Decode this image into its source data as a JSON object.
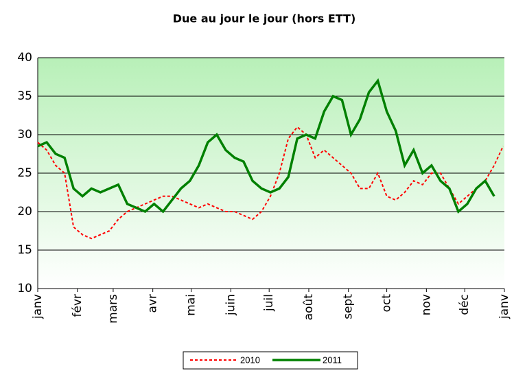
{
  "chart_data": {
    "type": "line",
    "title": "Due au jour le jour (hors ETT)",
    "x": [
      0,
      7,
      14,
      21,
      28,
      35,
      42,
      49,
      56,
      63,
      70,
      77,
      84,
      91,
      98,
      105,
      112,
      119,
      126,
      133,
      140,
      147,
      154,
      161,
      168,
      175,
      182,
      189,
      196,
      203,
      210,
      217,
      224,
      231,
      238,
      245,
      252,
      259,
      266,
      273,
      280,
      287,
      294,
      301,
      308,
      315,
      322,
      329,
      336,
      343,
      350,
      357,
      364
    ],
    "xlim": [
      0,
      365
    ],
    "xticks": [
      {
        "value": 0,
        "label": "janv"
      },
      {
        "value": 31,
        "label": "févr"
      },
      {
        "value": 59,
        "label": "mars"
      },
      {
        "value": 90,
        "label": "avr"
      },
      {
        "value": 120,
        "label": "mai"
      },
      {
        "value": 151,
        "label": "juin"
      },
      {
        "value": 181,
        "label": "juil"
      },
      {
        "value": 212,
        "label": "août"
      },
      {
        "value": 243,
        "label": "sept"
      },
      {
        "value": 273,
        "label": "oct"
      },
      {
        "value": 304,
        "label": "nov"
      },
      {
        "value": 334,
        "label": "déc"
      },
      {
        "value": 365,
        "label": "janv"
      }
    ],
    "ylim": [
      10,
      40
    ],
    "yticks": [
      10,
      15,
      20,
      25,
      30,
      35,
      40
    ],
    "grid": true,
    "series": [
      {
        "name": "2010",
        "color": "#ff0000",
        "dashed": true,
        "values": [
          29,
          28,
          26,
          25,
          18,
          17,
          16.5,
          17,
          17.5,
          19,
          20,
          20.5,
          21,
          21.5,
          22,
          22,
          21.5,
          21,
          20.5,
          21,
          20.5,
          20,
          20,
          19.5,
          19,
          20,
          22,
          25,
          29.5,
          31,
          30,
          27,
          28,
          27,
          26,
          25,
          23,
          23,
          25,
          22,
          21.5,
          22.5,
          24,
          23.5,
          25,
          25,
          23,
          21,
          22,
          23,
          24,
          26,
          28.5
        ]
      },
      {
        "name": "2011",
        "color": "#008000",
        "dashed": false,
        "values": [
          28.5,
          29,
          27.5,
          27,
          23,
          22,
          23,
          22.5,
          23,
          23.5,
          21,
          20.5,
          20,
          21,
          20,
          21.5,
          23,
          24,
          26,
          29,
          30,
          28,
          27,
          26.5,
          24,
          23,
          22.5,
          23,
          24.5,
          29.5,
          30,
          29.5,
          33,
          35,
          34.5,
          30,
          32,
          35.5,
          37,
          33,
          30.5,
          26,
          28,
          25,
          26,
          24,
          23,
          20,
          21,
          23,
          24,
          22,
          null
        ]
      }
    ]
  }
}
